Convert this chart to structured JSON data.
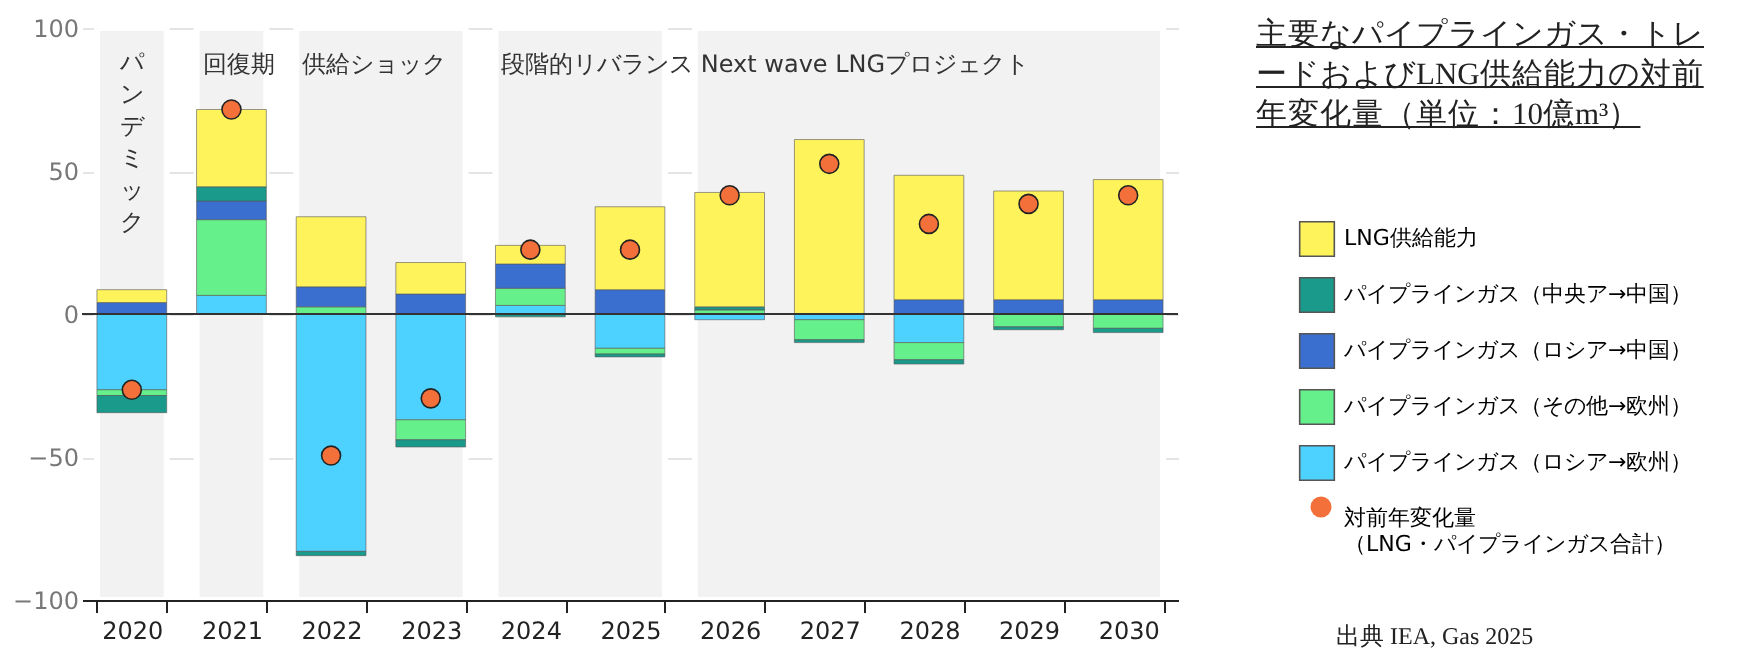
{
  "chart_data": {
    "type": "bar",
    "stacked": true,
    "title": "主要なパイプラインガス・トレードおよびLNG供給能力の対前年変化量（単位：10億m³）",
    "categories": [
      "2020",
      "2021",
      "2022",
      "2023",
      "2024",
      "2025",
      "2026",
      "2027",
      "2028",
      "2029",
      "2030"
    ],
    "series": [
      {
        "name": "パイプラインガス（ロシア→欧州）",
        "color": "#4dd2ff",
        "values": [
          -26.5,
          6.5,
          -83,
          -37,
          3,
          -12,
          -2,
          -2,
          -10,
          0,
          0
        ]
      },
      {
        "name": "パイプラインガス（その他→欧州）",
        "color": "#66f08c",
        "values": [
          -2,
          26.5,
          2.5,
          -7,
          6,
          -2,
          1.5,
          -7,
          -6,
          -4.5,
          -5
        ]
      },
      {
        "name": "パイプラインガス（ロシア→中国）",
        "color": "#3a6fd0",
        "values": [
          4,
          6.5,
          7,
          7,
          8.5,
          8.5,
          0,
          0,
          5,
          5,
          5
        ]
      },
      {
        "name": "パイプラインガス（中央ア→中国）",
        "color": "#1a9a8a",
        "values": [
          -6,
          5,
          -1.5,
          -2.5,
          -1,
          -1,
          1,
          -1,
          -1.5,
          -1,
          -1.5
        ]
      },
      {
        "name": "LNG供給能力",
        "color": "#fff35c",
        "values": [
          4.5,
          27,
          24.5,
          11,
          6.5,
          29,
          40,
          61,
          43.5,
          38,
          42
        ]
      },
      {
        "name": "対前年変化量（LNG・パイプラインガス合計）",
        "type": "scatter",
        "color": "#f4703a",
        "values": [
          -26.5,
          71.5,
          -49.5,
          -29.5,
          22.5,
          22.5,
          41.5,
          52.5,
          31.5,
          38.5,
          41.5
        ]
      }
    ],
    "ylim": [
      -100,
      100
    ],
    "yticks": [
      -100,
      -50,
      0,
      50,
      100
    ],
    "grid": "y",
    "legend": "right",
    "marker": "circle",
    "ref_lines": [
      {
        "axis": "y",
        "value": 0,
        "color": "#333333"
      }
    ],
    "bands": [
      {
        "axis": "x",
        "from": "2020",
        "to": "2020",
        "label": "パンデミック",
        "color": "#f2f2f2"
      },
      {
        "axis": "x",
        "from": "2021",
        "to": "2021",
        "label": "回復期",
        "color": "#f2f2f2"
      },
      {
        "axis": "x",
        "from": "2022",
        "to": "2023",
        "label": "供給ショック",
        "color": "#f2f2f2"
      },
      {
        "axis": "x",
        "from": "2024",
        "to": "2025",
        "label": "段階的リバランス",
        "color": "#f2f2f2"
      },
      {
        "axis": "x",
        "from": "2026",
        "to": "2030",
        "label": "Next wave LNGプロジェクト",
        "color": "#f2f2f2"
      }
    ],
    "annotations": [
      "出典 IEA, Gas 2025"
    ]
  }
}
